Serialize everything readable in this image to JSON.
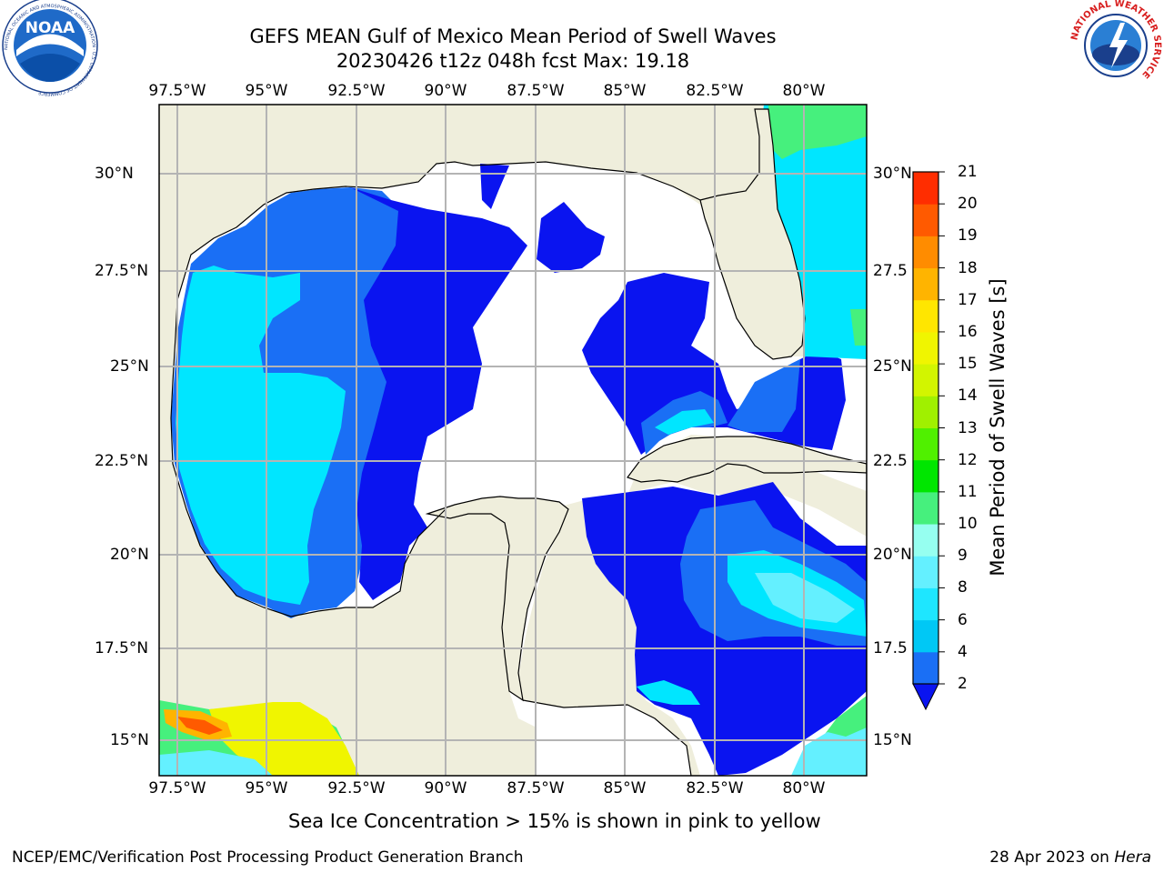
{
  "header": {
    "title_line1": "GEFS MEAN Gulf of Mexico Mean Period of Swell Waves",
    "title_line2": "20230426 t12z 048h fcst   Max: 19.18"
  },
  "axes": {
    "lon_labels": [
      "97.5°W",
      "95°W",
      "92.5°W",
      "90°W",
      "87.5°W",
      "85°W",
      "82.5°W",
      "80°W"
    ],
    "lat_labels_left": [
      "30°N",
      "27.5°N",
      "25°N",
      "22.5°N",
      "20°N",
      "17.5°N",
      "15°N"
    ],
    "lat_labels_right": [
      "30°N",
      "27.5",
      "25°N",
      "22.5",
      "20°N",
      "17.5",
      "15°N"
    ]
  },
  "colorbar": {
    "title": "Mean Period of Swell Waves [s]",
    "ticks": [
      "2",
      "4",
      "6",
      "8",
      "9",
      "10",
      "11",
      "12",
      "13",
      "14",
      "15",
      "16",
      "17",
      "18",
      "19",
      "20",
      "21"
    ],
    "colors": [
      "#1a6ff5",
      "#00c8f5",
      "#1ee6ff",
      "#64f0ff",
      "#96fff0",
      "#46f07d",
      "#00e600",
      "#50f000",
      "#a0f000",
      "#d2f500",
      "#f0f500",
      "#ffe600",
      "#ffb400",
      "#ff8c00",
      "#ff5a00",
      "#ff2d00"
    ],
    "extend_color": "#0a14f0"
  },
  "map": {
    "land_color": "#efeedc",
    "ocean_blank_color": "#ffffff",
    "grid_color": "#b4b4b4"
  },
  "footer": {
    "note": "Sea Ice Concentration > 15% is shown in pink to yellow",
    "left": "NCEP/EMC/Verification Post Processing Product Generation Branch",
    "right_text": "28 Apr 2023 on ",
    "right_host": "Hera"
  },
  "logos": {
    "noaa_text": "NOAA",
    "noaa_ring_text": "NATIONAL OCEANIC AND ATMOSPHERIC ADMINISTRATION · U.S. DEPARTMENT OF COMMERCE",
    "nws_ring_text": "NATIONAL WEATHER SERVICE"
  }
}
